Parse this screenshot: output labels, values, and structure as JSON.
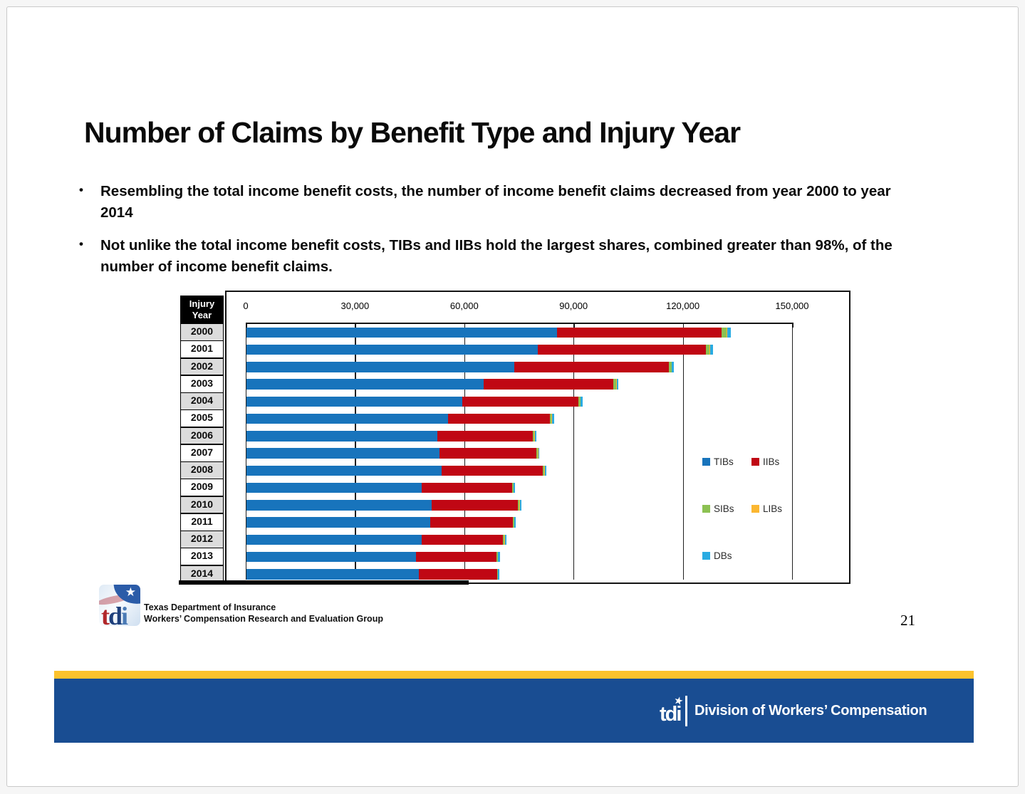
{
  "slide": {
    "title": "Number of Claims by Benefit Type and Injury Year",
    "bullets": [
      {
        "lines": [
          "Resembling the total income benefit costs, the number of income benefit claims decreased from year 2000 to year",
          "2014"
        ]
      },
      {
        "lines": [
          "Not unlike the total income benefit costs, TIBs and IIBs hold the largest shares, combined greater than 98%, of the",
          "number of income benefit claims."
        ]
      }
    ],
    "page_number": "21"
  },
  "chart_data": {
    "type": "bar",
    "orientation": "horizontal",
    "stacked": true,
    "grid": true,
    "row_header": "Injury Year",
    "categories": [
      "2000",
      "2001",
      "2002",
      "2003",
      "2004",
      "2005",
      "2006",
      "2007",
      "2008",
      "2009",
      "2010",
      "2011",
      "2012",
      "2013",
      "2014"
    ],
    "series": [
      {
        "name": "TIBs",
        "color": "#1874bc",
        "values": [
          85200,
          80000,
          73600,
          65200,
          59200,
          55400,
          52500,
          53000,
          53500,
          48100,
          50800,
          50400,
          48200,
          46600,
          47400
        ]
      },
      {
        "name": "IIBs",
        "color": "#c00714",
        "values": [
          45200,
          46200,
          42300,
          35600,
          32000,
          27900,
          26200,
          26600,
          27900,
          24900,
          23800,
          22800,
          22300,
          22100,
          21400
        ]
      },
      {
        "name": "SIBs",
        "color": "#8cc152",
        "values": [
          1400,
          1000,
          800,
          700,
          500,
          500,
          400,
          400,
          400,
          300,
          300,
          300,
          300,
          300,
          200
        ]
      },
      {
        "name": "LIBs",
        "color": "#fbb731",
        "values": [
          200,
          200,
          150,
          150,
          100,
          100,
          100,
          100,
          100,
          100,
          100,
          100,
          100,
          100,
          100
        ]
      },
      {
        "name": "DBs",
        "color": "#29abe2",
        "values": [
          900,
          700,
          550,
          450,
          500,
          600,
          300,
          300,
          400,
          400,
          400,
          400,
          400,
          500,
          400
        ]
      }
    ],
    "xlim": [
      0,
      165000
    ],
    "x_tick_values": [
      0,
      30000,
      60000,
      90000,
      120000,
      150000
    ],
    "x_ticks": [
      "0",
      "30,000",
      "60,000",
      "90,000",
      "120,000",
      "150,000"
    ],
    "legend_position": "inside-right"
  },
  "footer": {
    "org_line1": "Texas Department of Insurance",
    "org_line2": "Workers’ Compensation Research and Evaluation Group",
    "logo_letter_t": "t",
    "logo_letter_d": "d",
    "logo_letter_i": "i",
    "logo_star": "★",
    "banner_logo_text": "tdi",
    "banner_logo_star": "★",
    "banner_text": "Division of Workers’ Compensation"
  },
  "colors": {
    "footer_yellow": "#fcc22d",
    "footer_blue": "#194d92",
    "table_header_bg": "#000000",
    "table_row_alt_bg": "#dcdcdc"
  }
}
